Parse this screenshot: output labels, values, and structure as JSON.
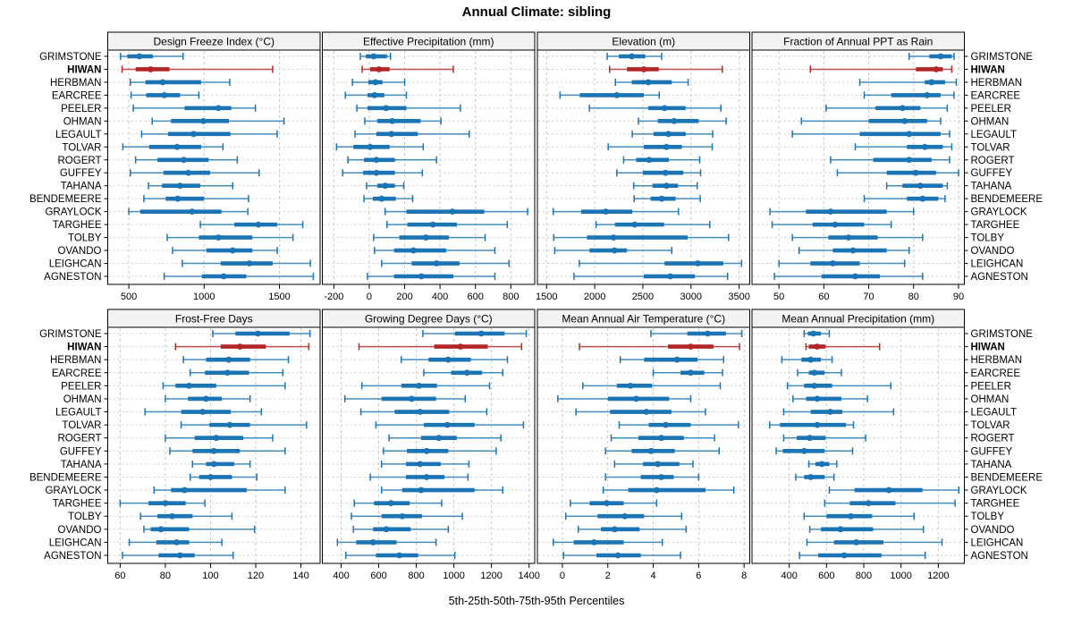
{
  "title": "Annual Climate: sibling",
  "caption": "5th-25th-50th-75th-95th Percentiles",
  "colors": {
    "normal": "#1b74b4",
    "highlight": "#b32626",
    "grid": "#c9c9c9",
    "row_guide": "#cccccc",
    "strip_bg": "#f2f2f2",
    "panel_border": "#000000",
    "text": "#000000",
    "background": "#ffffff"
  },
  "stations": [
    "GRIMSTONE",
    "HIWAN",
    "HERBMAN",
    "EARCREE",
    "PEELER",
    "OHMAN",
    "LEGAULT",
    "TOLVAR",
    "ROGERT",
    "GUFFEY",
    "TAHANA",
    "BENDEMEERE",
    "GRAYLOCK",
    "TARGHEE",
    "TOLBY",
    "OVANDO",
    "LEIGHCAN",
    "AGNESTON"
  ],
  "highlight_station": "HIWAN",
  "chart_data": {
    "type": "dot-interval",
    "subtype": "5-25-50-75-95 percentile summaries per station, trellis of 8 variables",
    "percentile_labels": [
      "5th",
      "25th",
      "50th",
      "75th",
      "95th"
    ],
    "grid": "dashed vertical lines at x ticks, dashed horizontal guide per station row",
    "legend_position": "none",
    "panel_grid": {
      "rows": 2,
      "cols": 4
    },
    "panels": [
      {
        "title": "Design Freeze Index (°C)",
        "ticks": [
          500,
          1000,
          1500
        ],
        "xlim": [
          360,
          1770
        ],
        "values": [
          [
            445,
            490,
            570,
            660,
            860
          ],
          [
            455,
            545,
            645,
            770,
            1455
          ],
          [
            510,
            610,
            725,
            980,
            1170
          ],
          [
            515,
            615,
            735,
            840,
            965
          ],
          [
            530,
            870,
            1095,
            1180,
            1340
          ],
          [
            655,
            780,
            995,
            1165,
            1530
          ],
          [
            585,
            760,
            930,
            1175,
            1485
          ],
          [
            460,
            635,
            820,
            980,
            1125
          ],
          [
            545,
            690,
            865,
            1030,
            1220
          ],
          [
            510,
            730,
            895,
            1040,
            1365
          ],
          [
            630,
            720,
            840,
            975,
            1190
          ],
          [
            600,
            745,
            825,
            1000,
            1295
          ],
          [
            500,
            575,
            920,
            1115,
            1290
          ],
          [
            975,
            1200,
            1360,
            1485,
            1655
          ],
          [
            755,
            965,
            1095,
            1320,
            1590
          ],
          [
            790,
            1015,
            1190,
            1320,
            1485
          ],
          [
            855,
            1110,
            1300,
            1455,
            1705
          ],
          [
            735,
            985,
            1130,
            1280,
            1725
          ]
        ]
      },
      {
        "title": "Effective Precipitation (mm)",
        "ticks": [
          -200,
          0,
          200,
          400,
          600,
          800
        ],
        "xlim": [
          -265,
          935
        ],
        "values": [
          [
            -50,
            -20,
            25,
            100,
            120
          ],
          [
            -40,
            5,
            55,
            115,
            475
          ],
          [
            -95,
            -5,
            35,
            75,
            200
          ],
          [
            -135,
            -10,
            30,
            85,
            210
          ],
          [
            -70,
            -10,
            95,
            210,
            515
          ],
          [
            -25,
            45,
            130,
            290,
            405
          ],
          [
            -80,
            40,
            125,
            275,
            565
          ],
          [
            -185,
            -90,
            5,
            115,
            305
          ],
          [
            -120,
            -30,
            40,
            145,
            380
          ],
          [
            -150,
            -35,
            40,
            145,
            300
          ],
          [
            -15,
            45,
            90,
            145,
            195
          ],
          [
            -30,
            20,
            70,
            150,
            245
          ],
          [
            90,
            210,
            470,
            650,
            895
          ],
          [
            100,
            215,
            360,
            495,
            780
          ],
          [
            25,
            170,
            320,
            450,
            655
          ],
          [
            30,
            140,
            250,
            435,
            710
          ],
          [
            70,
            240,
            380,
            510,
            790
          ],
          [
            -10,
            140,
            295,
            475,
            710
          ]
        ]
      },
      {
        "title": "Elevation (m)",
        "ticks": [
          1500,
          2000,
          2500,
          3000,
          3500
        ],
        "xlim": [
          1405,
          3610
        ],
        "values": [
          [
            2130,
            2250,
            2385,
            2525,
            2695
          ],
          [
            2155,
            2335,
            2510,
            2665,
            3325
          ],
          [
            2215,
            2385,
            2555,
            2800,
            2970
          ],
          [
            1640,
            1845,
            2230,
            2510,
            2670
          ],
          [
            1945,
            2555,
            2725,
            2945,
            3310
          ],
          [
            2455,
            2655,
            2825,
            3080,
            3365
          ],
          [
            2390,
            2610,
            2765,
            2945,
            3225
          ],
          [
            2140,
            2510,
            2745,
            2905,
            3220
          ],
          [
            2300,
            2430,
            2565,
            2770,
            3090
          ],
          [
            2230,
            2500,
            2735,
            2920,
            3100
          ],
          [
            2405,
            2600,
            2745,
            2865,
            3065
          ],
          [
            2410,
            2580,
            2695,
            2840,
            3095
          ],
          [
            1570,
            1860,
            2115,
            2390,
            2870
          ],
          [
            2015,
            2210,
            2415,
            2720,
            3195
          ],
          [
            1575,
            1920,
            2195,
            2965,
            3390
          ],
          [
            1585,
            1945,
            2205,
            2335,
            2800
          ],
          [
            1840,
            2725,
            3070,
            3335,
            3525
          ],
          [
            1785,
            2510,
            2785,
            3040,
            3380
          ]
        ]
      },
      {
        "title": "Fraction of Annual PPT as Rain",
        "ticks": [
          50,
          60,
          70,
          80,
          90
        ],
        "xlim": [
          44,
          91.3
        ],
        "values": [
          [
            79,
            83.5,
            86,
            88.5,
            89
          ],
          [
            57,
            80.5,
            85,
            86.5,
            88.5
          ],
          [
            68,
            82.5,
            84,
            87,
            89.5
          ],
          [
            69,
            75,
            83,
            86,
            89
          ],
          [
            60.5,
            71.5,
            77.5,
            81.5,
            87.5
          ],
          [
            55,
            70,
            78,
            83,
            86
          ],
          [
            53,
            68,
            79,
            86,
            88
          ],
          [
            67,
            78.5,
            82.5,
            86.5,
            88.5
          ],
          [
            61.5,
            71,
            79,
            84,
            88
          ],
          [
            63,
            74,
            80.5,
            85,
            90
          ],
          [
            74,
            77.5,
            81.5,
            86.5,
            87.5
          ],
          [
            69,
            78.5,
            82,
            85.5,
            87
          ],
          [
            48,
            56,
            61.5,
            74,
            80
          ],
          [
            48.5,
            57.5,
            62.5,
            69,
            75
          ],
          [
            53,
            61,
            65.5,
            72,
            82
          ],
          [
            54.5,
            62,
            66.5,
            74,
            79
          ],
          [
            50,
            57,
            62,
            68,
            78
          ],
          [
            49,
            59.5,
            67,
            72.5,
            82
          ]
        ]
      },
      {
        "title": "Frost-Free Days",
        "ticks": [
          60,
          80,
          100,
          120,
          140
        ],
        "xlim": [
          54.5,
          148.5
        ],
        "values": [
          [
            101,
            111,
            121,
            135,
            144
          ],
          [
            84.5,
            104.5,
            113,
            124.5,
            143.5
          ],
          [
            88,
            98,
            108,
            117.5,
            134.5
          ],
          [
            91,
            97.5,
            107.5,
            117,
            132
          ],
          [
            79,
            84.5,
            90.5,
            102.5,
            133
          ],
          [
            80,
            90,
            98,
            105,
            117.5
          ],
          [
            71,
            87,
            96.5,
            109,
            122.5
          ],
          [
            87,
            99.5,
            108.5,
            117.5,
            142.5
          ],
          [
            80,
            93,
            102.5,
            114.5,
            127.5
          ],
          [
            82,
            92,
            101.5,
            113,
            133
          ],
          [
            92,
            98,
            101.5,
            110.5,
            117.5
          ],
          [
            91,
            95,
            100,
            109.5,
            120.5
          ],
          [
            75,
            82.5,
            88.5,
            116,
            133
          ],
          [
            60,
            72.5,
            80,
            89,
            97.5
          ],
          [
            69,
            76.5,
            83,
            92,
            109.5
          ],
          [
            70.5,
            73.5,
            78,
            90.5,
            119.5
          ],
          [
            64,
            76,
            85,
            90.5,
            105
          ],
          [
            61,
            77,
            86.5,
            93,
            110
          ]
        ]
      },
      {
        "title": "Growing Degree Days (°C)",
        "ticks": [
          400,
          600,
          800,
          1000,
          1200,
          1400
        ],
        "xlim": [
          300,
          1430
        ],
        "values": [
          [
            835,
            1005,
            1145,
            1270,
            1385
          ],
          [
            495,
            895,
            1035,
            1180,
            1360
          ],
          [
            720,
            865,
            970,
            1090,
            1285
          ],
          [
            840,
            985,
            1070,
            1150,
            1260
          ],
          [
            510,
            720,
            815,
            910,
            1190
          ],
          [
            420,
            615,
            775,
            905,
            1060
          ],
          [
            505,
            685,
            820,
            975,
            1175
          ],
          [
            585,
            840,
            965,
            1110,
            1370
          ],
          [
            655,
            825,
            920,
            1015,
            1250
          ],
          [
            625,
            750,
            855,
            970,
            1225
          ],
          [
            615,
            745,
            820,
            930,
            1080
          ],
          [
            555,
            745,
            855,
            950,
            1075
          ],
          [
            615,
            725,
            825,
            1110,
            1260
          ],
          [
            470,
            575,
            665,
            765,
            935
          ],
          [
            455,
            615,
            725,
            830,
            1045
          ],
          [
            465,
            570,
            640,
            770,
            970
          ],
          [
            380,
            480,
            570,
            695,
            905
          ],
          [
            425,
            585,
            710,
            810,
            1005
          ]
        ]
      },
      {
        "title": "Mean Annual Air Temperature (°C)",
        "ticks": [
          0,
          2,
          4,
          6,
          8
        ],
        "xlim": [
          -1.1,
          8.25
        ],
        "values": [
          [
            3.9,
            5.5,
            6.4,
            7.2,
            7.9
          ],
          [
            0.75,
            4.65,
            5.65,
            6.65,
            7.8
          ],
          [
            2.55,
            3.6,
            5.05,
            5.95,
            7.1
          ],
          [
            4.0,
            5.2,
            5.65,
            6.25,
            7.05
          ],
          [
            0.9,
            2.4,
            3.0,
            3.95,
            6.95
          ],
          [
            -0.2,
            2.0,
            3.25,
            4.7,
            5.65
          ],
          [
            0.6,
            2.1,
            3.7,
            4.8,
            6.3
          ],
          [
            2.5,
            3.8,
            4.55,
            5.65,
            7.75
          ],
          [
            2.15,
            3.35,
            4.35,
            5.35,
            6.7
          ],
          [
            1.9,
            3.05,
            3.9,
            4.95,
            6.9
          ],
          [
            2.3,
            3.55,
            4.2,
            5.15,
            5.75
          ],
          [
            1.9,
            3.45,
            4.35,
            4.9,
            6.0
          ],
          [
            1.8,
            2.9,
            4.15,
            6.3,
            7.55
          ],
          [
            0.35,
            1.2,
            1.95,
            2.7,
            4.15
          ],
          [
            0.15,
            1.55,
            2.75,
            3.6,
            5.25
          ],
          [
            0.7,
            1.7,
            2.3,
            3.4,
            5.45
          ],
          [
            -0.4,
            0.5,
            1.4,
            2.7,
            4.4
          ],
          [
            0.05,
            1.5,
            2.45,
            3.45,
            5.2
          ]
        ]
      },
      {
        "title": "Mean Annual Precipitation (mm)",
        "ticks": [
          400,
          600,
          800,
          1000,
          1200
        ],
        "xlim": [
          200,
          1340
        ],
        "values": [
          [
            480,
            500,
            530,
            570,
            615
          ],
          [
            490,
            505,
            550,
            595,
            885
          ],
          [
            360,
            465,
            515,
            570,
            630
          ],
          [
            445,
            505,
            535,
            590,
            680
          ],
          [
            390,
            480,
            535,
            630,
            945
          ],
          [
            420,
            490,
            550,
            680,
            820
          ],
          [
            370,
            515,
            620,
            685,
            960
          ],
          [
            295,
            350,
            550,
            705,
            745
          ],
          [
            370,
            440,
            510,
            595,
            810
          ],
          [
            330,
            365,
            480,
            590,
            740
          ],
          [
            505,
            540,
            575,
            615,
            655
          ],
          [
            435,
            480,
            515,
            590,
            640
          ],
          [
            615,
            750,
            935,
            1115,
            1310
          ],
          [
            590,
            725,
            825,
            970,
            1290
          ],
          [
            480,
            600,
            730,
            845,
            1070
          ],
          [
            510,
            570,
            675,
            850,
            1120
          ],
          [
            495,
            640,
            760,
            905,
            1220
          ],
          [
            455,
            555,
            695,
            895,
            1130
          ]
        ]
      }
    ]
  }
}
